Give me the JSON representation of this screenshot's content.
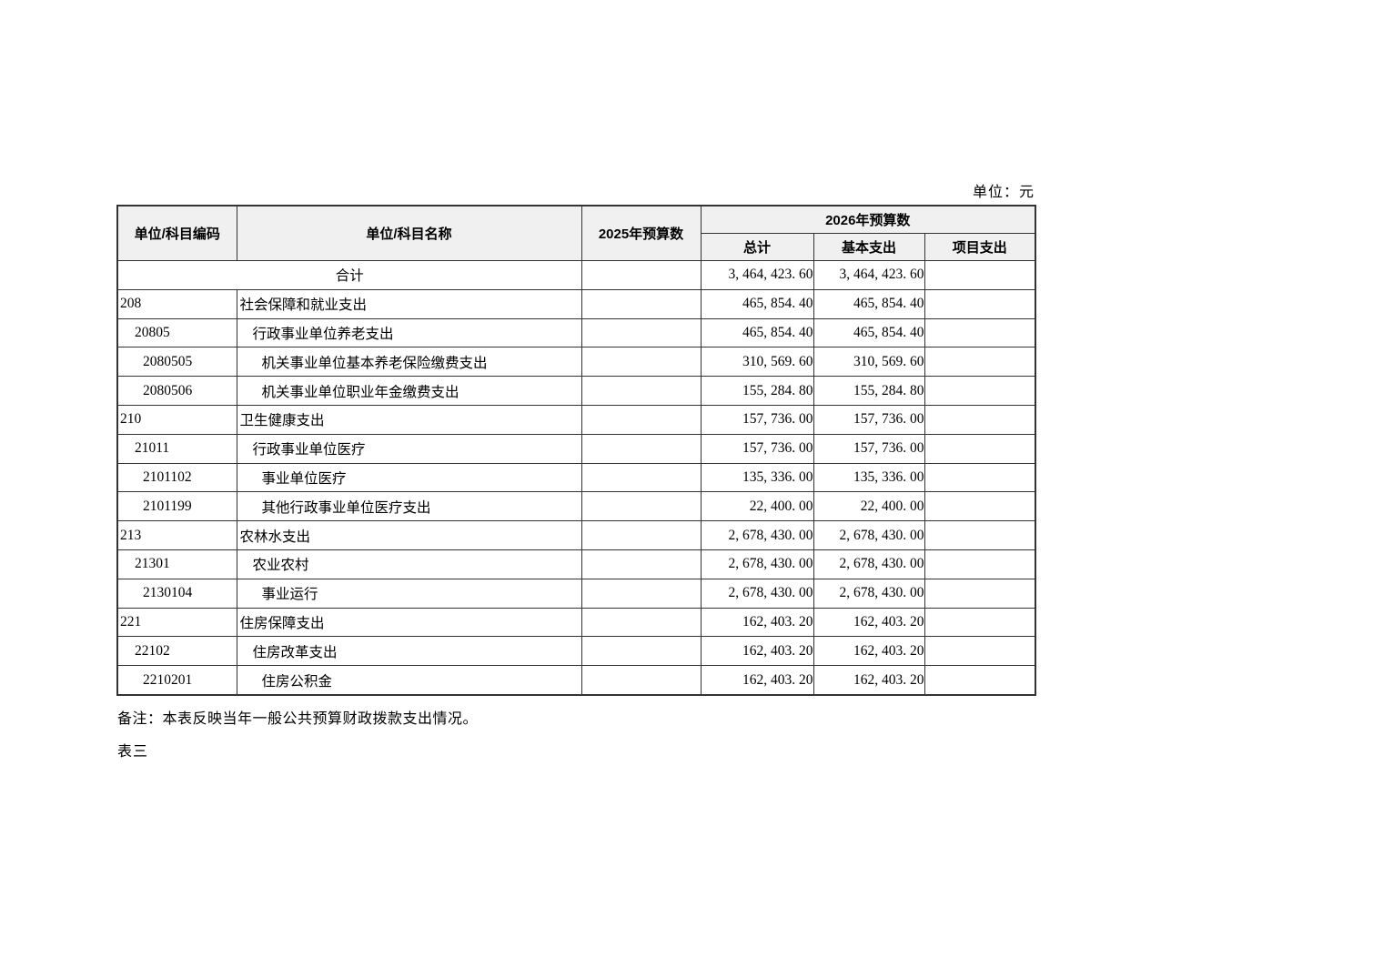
{
  "page": {
    "unit_label": "单位：元",
    "note": "备注：本表反映当年一般公共预算财政拨款支出情况。",
    "footer_label": "表三"
  },
  "colors": {
    "header_bg": "#f0f0f0",
    "border": "#333333",
    "page_bg": "#ffffff",
    "text": "#000000"
  },
  "table": {
    "headers": {
      "code": "单位/科目编码",
      "name": "单位/科目名称",
      "budget_2025": "2025年预算数",
      "budget_2026": "2026年预算数",
      "total": "总计",
      "basic": "基本支出",
      "project": "项目支出"
    },
    "total_row": {
      "label": "合计",
      "budget_2025": "",
      "total": "3, 464, 423. 60",
      "basic": "3, 464, 423. 60",
      "project": ""
    },
    "rows": [
      {
        "code": "208",
        "level": 0,
        "name": "社会保障和就业支出",
        "budget_2025": "",
        "total": "465, 854. 40",
        "basic": "465, 854. 40",
        "project": ""
      },
      {
        "code": "20805",
        "level": 1,
        "name": "行政事业单位养老支出",
        "budget_2025": "",
        "total": "465, 854. 40",
        "basic": "465, 854. 40",
        "project": ""
      },
      {
        "code": "2080505",
        "level": 2,
        "name": "机关事业单位基本养老保险缴费支出",
        "budget_2025": "",
        "total": "310, 569. 60",
        "basic": "310, 569. 60",
        "project": ""
      },
      {
        "code": "2080506",
        "level": 2,
        "name": "机关事业单位职业年金缴费支出",
        "budget_2025": "",
        "total": "155, 284. 80",
        "basic": "155, 284. 80",
        "project": ""
      },
      {
        "code": "210",
        "level": 0,
        "name": "卫生健康支出",
        "budget_2025": "",
        "total": "157, 736. 00",
        "basic": "157, 736. 00",
        "project": ""
      },
      {
        "code": "21011",
        "level": 1,
        "name": "行政事业单位医疗",
        "budget_2025": "",
        "total": "157, 736. 00",
        "basic": "157, 736. 00",
        "project": ""
      },
      {
        "code": "2101102",
        "level": 2,
        "name": "事业单位医疗",
        "budget_2025": "",
        "total": "135, 336. 00",
        "basic": "135, 336. 00",
        "project": ""
      },
      {
        "code": "2101199",
        "level": 2,
        "name": "其他行政事业单位医疗支出",
        "budget_2025": "",
        "total": "22, 400. 00",
        "basic": "22, 400. 00",
        "project": ""
      },
      {
        "code": "213",
        "level": 0,
        "name": "农林水支出",
        "budget_2025": "",
        "total": "2, 678, 430. 00",
        "basic": "2, 678, 430. 00",
        "project": ""
      },
      {
        "code": "21301",
        "level": 1,
        "name": "农业农村",
        "budget_2025": "",
        "total": "2, 678, 430. 00",
        "basic": "2, 678, 430. 00",
        "project": ""
      },
      {
        "code": "2130104",
        "level": 2,
        "name": "事业运行",
        "budget_2025": "",
        "total": "2, 678, 430. 00",
        "basic": "2, 678, 430. 00",
        "project": ""
      },
      {
        "code": "221",
        "level": 0,
        "name": "住房保障支出",
        "budget_2025": "",
        "total": "162, 403. 20",
        "basic": "162, 403. 20",
        "project": ""
      },
      {
        "code": "22102",
        "level": 1,
        "name": "住房改革支出",
        "budget_2025": "",
        "total": "162, 403. 20",
        "basic": "162, 403. 20",
        "project": ""
      },
      {
        "code": "2210201",
        "level": 2,
        "name": "住房公积金",
        "budget_2025": "",
        "total": "162, 403. 20",
        "basic": "162, 403. 20",
        "project": ""
      }
    ]
  }
}
